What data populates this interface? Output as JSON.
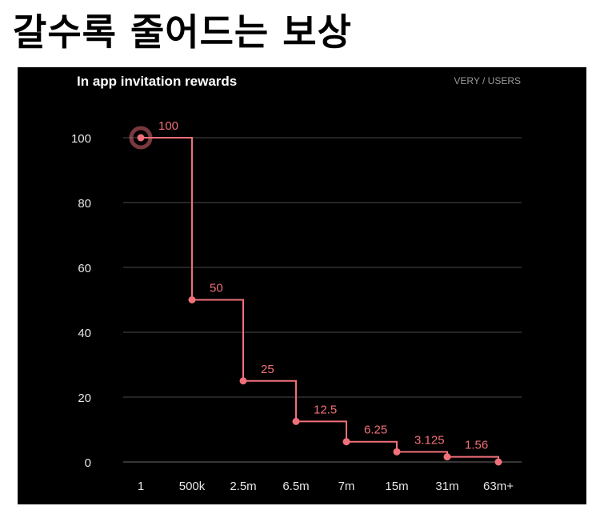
{
  "headline": "갈수록 줄어드는 보상",
  "chart_data": {
    "type": "line",
    "title": "In app invitation rewards",
    "unit_label": "VERY / USERS",
    "categories": [
      "1",
      "500k",
      "2.5m",
      "6.5m",
      "7m",
      "15m",
      "31m",
      "63m+"
    ],
    "values": [
      100,
      50,
      25,
      12.5,
      6.25,
      3.125,
      1.56,
      0
    ],
    "data_labels": [
      "100",
      "50",
      "25",
      "12.5",
      "6.25",
      "3.125",
      "1.56",
      ""
    ],
    "yticks": [
      "0",
      "20",
      "40",
      "60",
      "80",
      "100"
    ],
    "ylim": [
      0,
      100
    ],
    "step": true,
    "grid": true,
    "line_color": "#f0707a",
    "grid_color": "#4a4a4a",
    "background": "#000000"
  }
}
